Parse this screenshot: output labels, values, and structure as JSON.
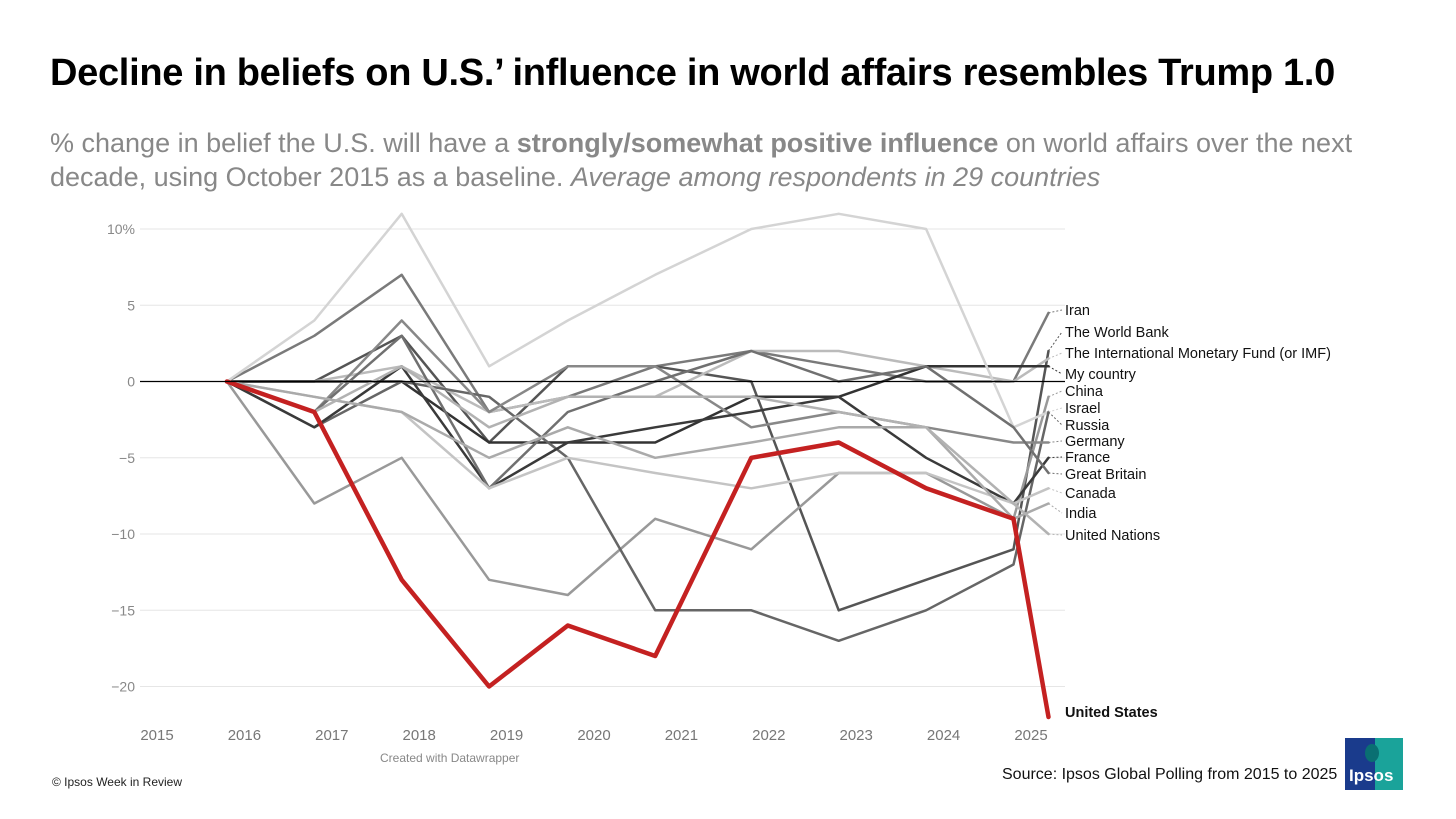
{
  "header": {
    "title": "Decline in beliefs on U.S.’ influence in world affairs resembles Trump 1.0",
    "subtitle_part1": "% change in belief the U.S. will have a ",
    "subtitle_bold": "strongly/somewhat positive influence",
    "subtitle_part2": " on world affairs over the next decade, using October 2015 as a baseline. ",
    "subtitle_italic": "Average among respondents in 29 countries"
  },
  "footer": {
    "copyright": "© Ipsos Week in Review",
    "credit": "Created with Datawrapper",
    "source": "Source: Ipsos Global Polling from 2015 to 2025",
    "logo_text": "Ipsos"
  },
  "colors": {
    "highlight": "#c42121",
    "zero_line": "#000000",
    "grid": "#e6e6e6"
  },
  "chart_data": {
    "type": "line",
    "xlabel": "",
    "ylabel": "",
    "x_tick_labels": [
      "2015",
      "2016",
      "2017",
      "2018",
      "2019",
      "2020",
      "2021",
      "2022",
      "2023",
      "2024",
      "2025"
    ],
    "y_ticks": [
      10,
      5,
      0,
      -5,
      -10,
      -15,
      -20
    ],
    "y_tick_labels": [
      "10%",
      "5",
      "0",
      "−5",
      "−10",
      "−15",
      "−20"
    ],
    "ylim": [
      -22,
      11
    ],
    "grid": true,
    "time_points": [
      2015.8,
      2016.8,
      2017.8,
      2018.8,
      2019.7,
      2020.7,
      2021.8,
      2022.8,
      2023.8,
      2024.8,
      2025.2
    ],
    "series": [
      {
        "name": "Iran",
        "color": "#7a7a7a",
        "label_y": 4.5,
        "values": [
          0,
          3,
          7,
          -2,
          -1,
          1,
          2,
          1,
          0,
          0,
          4.5
        ]
      },
      {
        "name": "The World Bank",
        "color": "#555555",
        "label_y": 2.2,
        "values": [
          0,
          0,
          3,
          -4,
          1,
          1,
          0,
          -15,
          -13,
          -11,
          2
        ]
      },
      {
        "name": "The International Monetary Fund (or IMF)",
        "color": "#bbbbbb",
        "label_y": 1.5,
        "values": [
          0,
          0,
          1,
          -2,
          -1,
          -1,
          2,
          2,
          1,
          0,
          1.5
        ]
      },
      {
        "name": "My country",
        "color": "#333333",
        "label_y": 0,
        "values": [
          0,
          0,
          0,
          -4,
          -4,
          -4,
          -1,
          -1,
          1,
          1,
          1
        ]
      },
      {
        "name": "China",
        "color": "#999999",
        "label_y": -1,
        "values": [
          0,
          -8,
          -5,
          -13,
          -14,
          -9,
          -11,
          -6,
          -6,
          -9,
          -1
        ]
      },
      {
        "name": "Israel",
        "color": "#d4d4d4",
        "label_y": -2,
        "values": [
          0,
          4,
          11,
          1,
          4,
          7,
          10,
          11,
          10,
          -3,
          -2
        ]
      },
      {
        "name": "Russia",
        "color": "#666666",
        "label_y": -3,
        "values": [
          0,
          -3,
          0,
          -1,
          -5,
          -15,
          -15,
          -17,
          -15,
          -12,
          -2
        ]
      },
      {
        "name": "Germany",
        "color": "#888888",
        "label_y": -4,
        "values": [
          0,
          -2,
          4,
          -2,
          1,
          1,
          -3,
          -2,
          -3,
          -4,
          -4
        ]
      },
      {
        "name": "France",
        "color": "#3a3a3a",
        "label_y": -5,
        "values": [
          0,
          -3,
          1,
          -7,
          -4,
          -3,
          -2,
          -1,
          -5,
          -8,
          -5
        ]
      },
      {
        "name": "Great Britain",
        "color": "#707070",
        "label_y": -6,
        "values": [
          0,
          -2,
          3,
          -7,
          -2,
          0,
          2,
          0,
          1,
          -3,
          -6
        ]
      },
      {
        "name": "Canada",
        "color": "#c4c4c4",
        "label_y": -7,
        "values": [
          0,
          -1,
          -2,
          -7,
          -5,
          -6,
          -7,
          -6,
          -6,
          -8,
          -7
        ]
      },
      {
        "name": "India",
        "color": "#aaaaaa",
        "label_y": -8,
        "values": [
          0,
          -1,
          -2,
          -5,
          -3,
          -5,
          -4,
          -3,
          -3,
          -9,
          -8
        ]
      },
      {
        "name": "United Nations",
        "color": "#b2b2b2",
        "label_y": -10,
        "values": [
          0,
          -2,
          1,
          -3,
          -1,
          -1,
          -1,
          -2,
          -3,
          -8,
          -10
        ]
      },
      {
        "name": "United States",
        "color": "#c42121",
        "highlight": true,
        "label_y": -22,
        "values": [
          0,
          -2,
          -13,
          -20,
          -16,
          -18,
          -5,
          -4,
          -7,
          -9,
          -22
        ]
      }
    ]
  }
}
